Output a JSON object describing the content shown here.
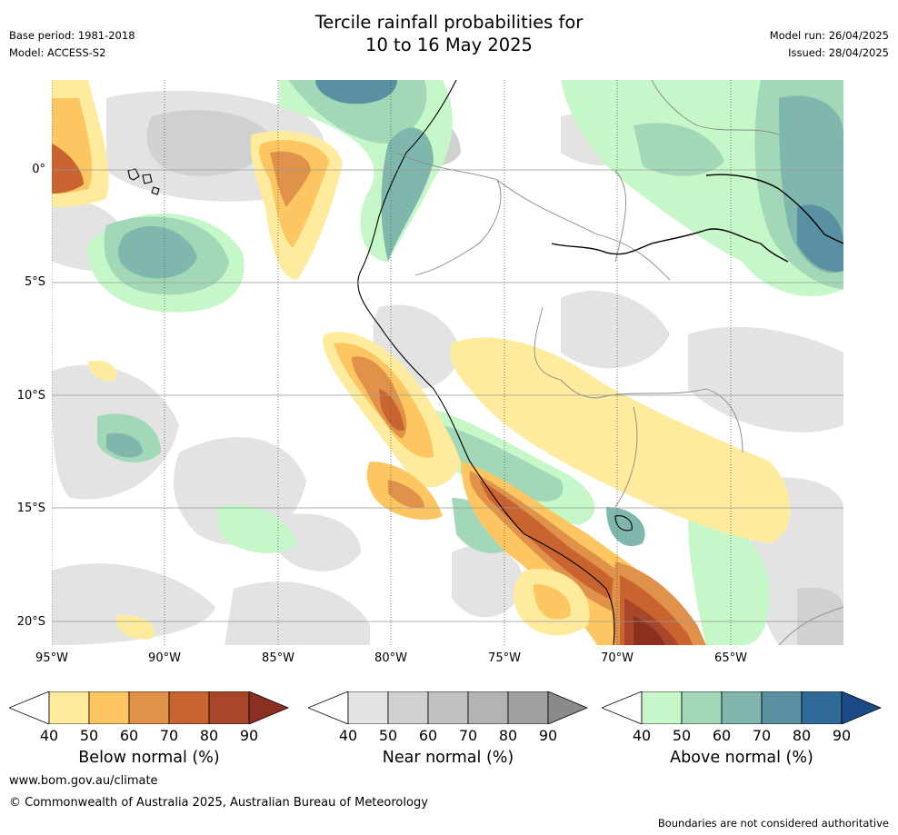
{
  "header": {
    "title_line1": "Tercile rainfall probabilities for",
    "title_line2": "10 to 16 May 2025",
    "base_period": "Base period: 1981-2018",
    "model": "Model: ACCESS-S2",
    "model_run": "Model run: 26/04/2025",
    "issued": "Issued: 28/04/2025"
  },
  "map": {
    "lat_labels": [
      "0°",
      "5°S",
      "10°S",
      "15°S",
      "20°S"
    ],
    "lon_labels": [
      "95°W",
      "90°W",
      "85°W",
      "80°W",
      "75°W",
      "70°W",
      "65°W"
    ],
    "extent": {
      "lon_min": -95,
      "lon_max": -60,
      "lat_min": -21,
      "lat_max": 4
    }
  },
  "colorbars": [
    {
      "title": "Below normal (%)",
      "ticks": [
        "40",
        "50",
        "60",
        "70",
        "80",
        "90"
      ],
      "colors": [
        "#ffffff",
        "#feeb9e",
        "#fdc660",
        "#e0924a",
        "#c9632f",
        "#a8462a",
        "#8b3020"
      ]
    },
    {
      "title": "Near normal (%)",
      "ticks": [
        "40",
        "50",
        "60",
        "70",
        "80",
        "90"
      ],
      "colors": [
        "#ffffff",
        "#e3e3e3",
        "#d1d1d1",
        "#c2c2c2",
        "#b3b3b3",
        "#9f9f9f",
        "#8a8a8a"
      ]
    },
    {
      "title": "Above normal (%)",
      "ticks": [
        "40",
        "50",
        "60",
        "70",
        "80",
        "90"
      ],
      "colors": [
        "#ffffff",
        "#c6f7c9",
        "#a2d8b7",
        "#7fb7ad",
        "#5a91a2",
        "#2f6a98",
        "#1b4a86"
      ]
    }
  ],
  "footer": {
    "website": "www.bom.gov.au/climate",
    "copyright": "© Commonwealth of Australia 2025, Australian Bureau of Meteorology",
    "disclaimer": "Boundaries are not considered authoritative"
  }
}
